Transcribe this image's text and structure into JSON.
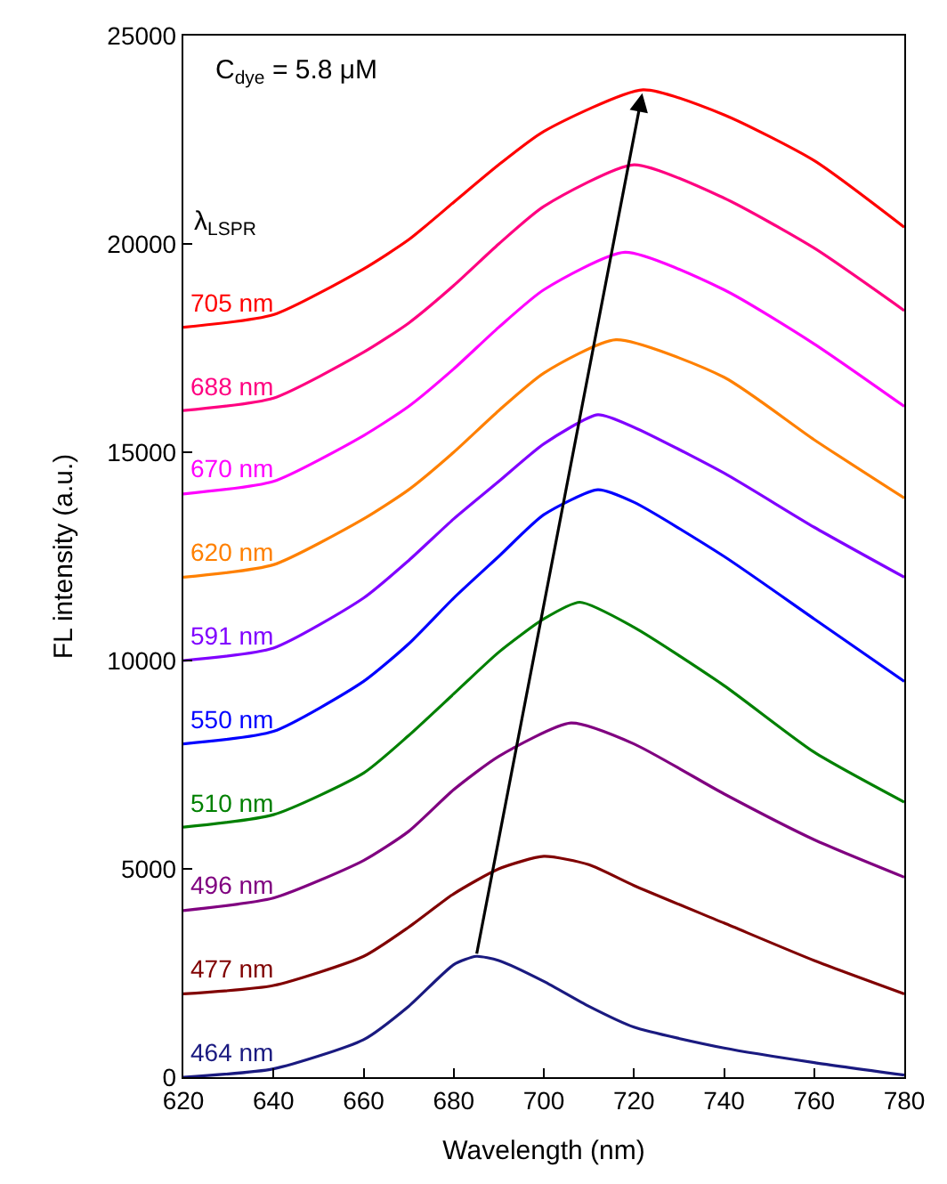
{
  "chart_data": {
    "type": "line",
    "xlabel": "Wavelength (nm)",
    "ylabel": "FL intensity (a.u.)",
    "xlim": [
      620,
      780
    ],
    "xticks": [
      620,
      640,
      660,
      680,
      700,
      720,
      740,
      760,
      780
    ],
    "ylim": [
      0,
      25000
    ],
    "yticks": [
      0,
      5000,
      10000,
      15000,
      20000,
      25000
    ],
    "legend": false,
    "marker": "none",
    "line_style": "solid",
    "annotations": [
      "C$_{dye}$ = 5.8 μM",
      "λ$_{LSPR}$"
    ],
    "series": [
      {
        "name": "464 nm",
        "color": "#1a1a80",
        "x": [
          620,
          640,
          660,
          670,
          680,
          685,
          690,
          700,
          710,
          720,
          740,
          760,
          780
        ],
        "values": [
          0,
          200,
          900,
          1700,
          2700,
          2900,
          2800,
          2300,
          1700,
          1200,
          700,
          350,
          50
        ]
      },
      {
        "name": "477 nm",
        "color": "#800000",
        "x": [
          620,
          640,
          660,
          670,
          680,
          690,
          700,
          710,
          720,
          740,
          760,
          780
        ],
        "values": [
          2000,
          2200,
          2900,
          3600,
          4400,
          5000,
          5300,
          5100,
          4600,
          3700,
          2800,
          2000
        ]
      },
      {
        "name": "496 nm",
        "color": "#800080",
        "x": [
          620,
          640,
          660,
          670,
          680,
          690,
          706,
          720,
          740,
          760,
          780
        ],
        "values": [
          4000,
          4300,
          5200,
          5900,
          6900,
          7700,
          8500,
          8000,
          6800,
          5700,
          4800
        ]
      },
      {
        "name": "510 nm",
        "color": "#008000",
        "x": [
          620,
          640,
          660,
          670,
          680,
          690,
          700,
          708,
          720,
          740,
          760,
          780
        ],
        "values": [
          6000,
          6300,
          7300,
          8200,
          9200,
          10200,
          11000,
          11400,
          10800,
          9400,
          7800,
          6600
        ]
      },
      {
        "name": "550 nm",
        "color": "#0000ff",
        "x": [
          620,
          640,
          660,
          670,
          680,
          690,
          700,
          712,
          720,
          740,
          760,
          780
        ],
        "values": [
          8000,
          8300,
          9500,
          10400,
          11500,
          12500,
          13500,
          14100,
          13800,
          12500,
          11000,
          9500
        ]
      },
      {
        "name": "591 nm",
        "color": "#8000ff",
        "x": [
          620,
          640,
          660,
          670,
          680,
          690,
          700,
          712,
          720,
          740,
          760,
          780
        ],
        "values": [
          10000,
          10300,
          11500,
          12400,
          13400,
          14300,
          15200,
          15900,
          15600,
          14500,
          13200,
          12000
        ]
      },
      {
        "name": "620 nm",
        "color": "#ff8000",
        "x": [
          620,
          640,
          660,
          670,
          680,
          690,
          700,
          716,
          740,
          760,
          780
        ],
        "values": [
          12000,
          12300,
          13400,
          14100,
          15000,
          16000,
          16900,
          17700,
          16800,
          15300,
          13900
        ]
      },
      {
        "name": "670 nm",
        "color": "#ff00ff",
        "x": [
          620,
          640,
          660,
          670,
          680,
          690,
          700,
          718,
          740,
          760,
          780
        ],
        "values": [
          14000,
          14300,
          15400,
          16100,
          17000,
          18000,
          18900,
          19800,
          18900,
          17600,
          16100
        ]
      },
      {
        "name": "688 nm",
        "color": "#ff0080",
        "x": [
          620,
          640,
          660,
          670,
          680,
          690,
          700,
          720,
          740,
          760,
          780
        ],
        "values": [
          16000,
          16300,
          17400,
          18100,
          19000,
          20000,
          20900,
          21900,
          21100,
          19900,
          18400
        ]
      },
      {
        "name": "705 nm",
        "color": "#ff0000",
        "x": [
          620,
          640,
          660,
          670,
          680,
          690,
          700,
          722,
          740,
          760,
          780
        ],
        "values": [
          18000,
          18300,
          19400,
          20100,
          21000,
          21900,
          22700,
          23700,
          23100,
          22000,
          20400
        ]
      }
    ]
  }
}
